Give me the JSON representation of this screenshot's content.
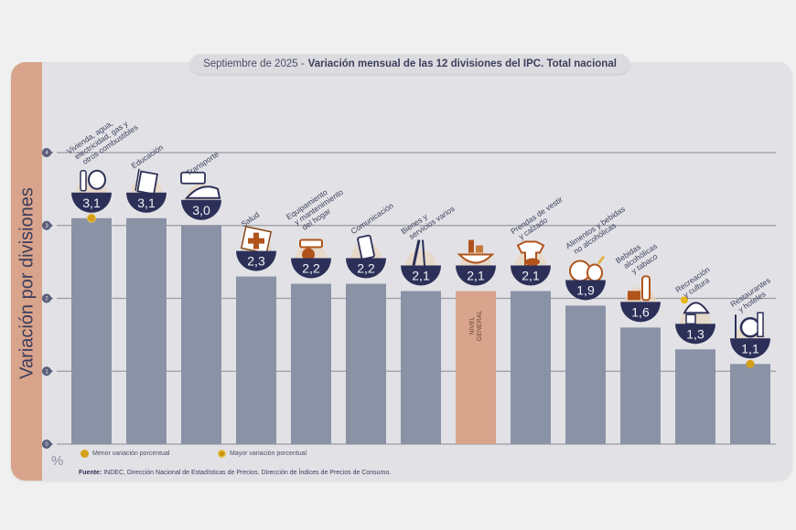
{
  "header": {
    "title_date": "Septiembre de 2025 -",
    "title_main": "Variación mensual de las 12 divisiones del IPC. Total nacional"
  },
  "axis": {
    "ylabel": "Variación por divisiones",
    "unit": "%"
  },
  "legend": {
    "items": [
      {
        "label": "Menor variación porcentual"
      },
      {
        "label": "Mayor variación porcentual"
      }
    ]
  },
  "source": {
    "label": "Fuente:",
    "text": "INDEC, Dirección Nacional de Estadísticas de Precios. Dirección de Índices de Precios de Consumo."
  },
  "colors": {
    "bar": "#8a92a6",
    "bar_general": "#d9a48c",
    "badge": "#2c3058",
    "marker": "#d4a017",
    "grid": "#9a9aa2"
  },
  "chart_data": {
    "type": "bar",
    "title": "Septiembre de 2025 - Variación mensual de las 12 divisiones del IPC. Total nacional",
    "xlabel": "",
    "ylabel": "Variación por divisiones",
    "ylim": [
      0,
      4
    ],
    "yticks": [
      "0",
      "1",
      "2",
      "3",
      "4"
    ],
    "grid": true,
    "legend_position": "bottom-left",
    "categories": [
      {
        "lines": [
          "Vivienda, agua,",
          "electricidad, gas y",
          "otros combustibles"
        ],
        "icon": "lightbulb-tools-icon"
      },
      {
        "lines": [
          "Educación"
        ],
        "icon": "notebook-pencil-icon"
      },
      {
        "lines": [
          "Transporte"
        ],
        "icon": "car-icon"
      },
      {
        "lines": [
          "Salud"
        ],
        "icon": "first-aid-icon"
      },
      {
        "lines": [
          "Equipamiento",
          "y mantenimiento",
          "del hogar"
        ],
        "icon": "washing-machine-icon"
      },
      {
        "lines": [
          "Comunicación"
        ],
        "icon": "smartphone-icon"
      },
      {
        "lines": [
          "Bienes y",
          "servicios varios"
        ],
        "icon": "razor-scissors-icon"
      },
      {
        "lines": [],
        "icon": "shopping-basket-icon",
        "bar_label": "NIVEL GENERAL"
      },
      {
        "lines": [
          "Prendas de vestir",
          "y calzado"
        ],
        "icon": "tshirt-shoe-icon"
      },
      {
        "lines": [
          "Alimentos y bebidas",
          "no alcohólicas"
        ],
        "icon": "food-chicken-icon"
      },
      {
        "lines": [
          "Bebidas",
          "alcohólicas",
          "y tabaco"
        ],
        "icon": "bottle-glass-icon"
      },
      {
        "lines": [
          "Recreación",
          "y cultura"
        ],
        "icon": "beach-umbrella-icon"
      },
      {
        "lines": [
          "Restaurantes",
          "y hoteles"
        ],
        "icon": "plate-cutlery-icon"
      }
    ],
    "values": [
      3.1,
      3.1,
      3.0,
      2.3,
      2.2,
      2.2,
      2.1,
      2.1,
      2.1,
      1.9,
      1.6,
      1.3,
      1.1
    ],
    "value_labels": [
      "3,1",
      "3,1",
      "3,0",
      "2,3",
      "2,2",
      "2,2",
      "2,1",
      "2,1",
      "2,1",
      "1,9",
      "1,6",
      "1,3",
      "1,1"
    ],
    "highlight": {
      "max_index": 0,
      "min_index": 12
    }
  }
}
